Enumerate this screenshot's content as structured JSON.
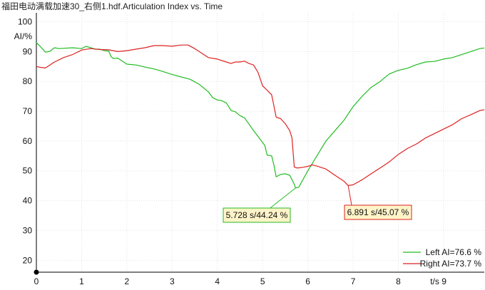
{
  "title": "福田电动满载加速30_右侧1.hdf.Articulation Index vs. Time",
  "chart_data": {
    "type": "line",
    "title": "福田电动满载加速30_右侧1.hdf.Articulation Index vs. Time",
    "xlabel": "t/s",
    "ylabel": "AI/%",
    "xlim": [
      0,
      9.9
    ],
    "ylim": [
      16,
      103
    ],
    "x_ticks": [
      0,
      1,
      2,
      3,
      4,
      5,
      6,
      7,
      8,
      9
    ],
    "x_tick_labels": [
      "0",
      "1",
      "2",
      "3",
      "4",
      "5",
      "6",
      "7",
      "8",
      "t/s 9"
    ],
    "y_ticks": [
      20,
      30,
      40,
      50,
      60,
      70,
      80,
      90,
      100
    ],
    "y_tick_labels": [
      "20",
      "30",
      "40",
      "50",
      "60",
      "70",
      "80",
      "90",
      "100"
    ],
    "grid": true,
    "legend_position": "bottom-right",
    "series": [
      {
        "name": "Left AI=76.6 %",
        "color": "#22bb22",
        "x": [
          0,
          0.1,
          0.2,
          0.3,
          0.4,
          0.5,
          0.6,
          0.8,
          1.0,
          1.1,
          1.2,
          1.3,
          1.4,
          1.5,
          1.6,
          1.65,
          1.7,
          1.8,
          2.0,
          2.2,
          2.4,
          2.6,
          2.8,
          3.0,
          3.2,
          3.4,
          3.6,
          3.8,
          3.9,
          4.0,
          4.1,
          4.2,
          4.3,
          4.35,
          4.4,
          4.5,
          4.6,
          4.8,
          5.0,
          5.05,
          5.1,
          5.2,
          5.25,
          5.3,
          5.4,
          5.5,
          5.6,
          5.7,
          5.728,
          5.8,
          6.0,
          6.2,
          6.4,
          6.6,
          6.8,
          7.0,
          7.2,
          7.4,
          7.6,
          7.8,
          8.0,
          8.2,
          8.4,
          8.6,
          8.8,
          9.0,
          9.2,
          9.4,
          9.6,
          9.8,
          9.9
        ],
        "values": [
          93,
          91.5,
          89.8,
          90.1,
          91.3,
          91,
          91.1,
          91.3,
          91,
          91.8,
          91.3,
          90.8,
          90.8,
          90.3,
          90.2,
          88.3,
          87.7,
          87.8,
          85.8,
          85.5,
          84.8,
          84.2,
          83.3,
          82.3,
          81.5,
          80.7,
          79,
          76.5,
          74.5,
          73.8,
          73.5,
          72.8,
          70.3,
          70,
          69.8,
          68.5,
          67.8,
          63.5,
          59.5,
          58.5,
          55.3,
          55,
          52,
          48,
          48.8,
          49,
          48.5,
          45.5,
          44.24,
          44.5,
          50,
          55,
          60,
          63.5,
          67,
          71.5,
          75,
          78,
          80,
          82.5,
          83.7,
          84.4,
          85.6,
          86.5,
          86.7,
          87.5,
          88,
          89,
          90,
          91,
          91.2
        ]
      },
      {
        "name": "Right AI=73.7 %",
        "color": "#dd2222",
        "x": [
          0,
          0.1,
          0.2,
          0.3,
          0.4,
          0.6,
          0.8,
          1.0,
          1.2,
          1.4,
          1.6,
          1.8,
          2.0,
          2.2,
          2.4,
          2.6,
          2.8,
          3.0,
          3.2,
          3.35,
          3.5,
          3.6,
          3.8,
          4.0,
          4.2,
          4.3,
          4.4,
          4.5,
          4.6,
          4.7,
          4.8,
          4.9,
          5.0,
          5.05,
          5.2,
          5.3,
          5.4,
          5.5,
          5.6,
          5.65,
          5.7,
          5.75,
          5.8,
          5.9,
          6.0,
          6.1,
          6.2,
          6.4,
          6.6,
          6.8,
          6.891,
          7.0,
          7.2,
          7.4,
          7.6,
          7.8,
          8.0,
          8.2,
          8.4,
          8.6,
          8.8,
          9.0,
          9.2,
          9.4,
          9.6,
          9.8,
          9.9
        ],
        "values": [
          85,
          84.7,
          84.5,
          85.5,
          86.5,
          88,
          89,
          90.5,
          91,
          90.7,
          90.6,
          90,
          90.3,
          90.8,
          91.3,
          92,
          92,
          91.8,
          92.2,
          92.2,
          91,
          90,
          88,
          87.5,
          86.5,
          86,
          86.5,
          86.5,
          86.8,
          86,
          85.5,
          83,
          78.5,
          77.8,
          75.5,
          68,
          67.5,
          65.8,
          63.5,
          61,
          51.3,
          51,
          51,
          51.2,
          51.5,
          52,
          51.6,
          50.6,
          48.5,
          46.5,
          45.07,
          45.3,
          47,
          49,
          51,
          53,
          55.5,
          57.5,
          59,
          61,
          62.5,
          64,
          65.5,
          67.5,
          68.8,
          70.2,
          70.5
        ]
      }
    ],
    "annotations": [
      {
        "text": "5.728 s/44.24 %",
        "x": 5.728,
        "y": 44.24,
        "color": "#22bb22"
      },
      {
        "text": "6.891 s/45.07 %",
        "x": 6.891,
        "y": 45.07,
        "color": "#dd2222"
      }
    ]
  }
}
